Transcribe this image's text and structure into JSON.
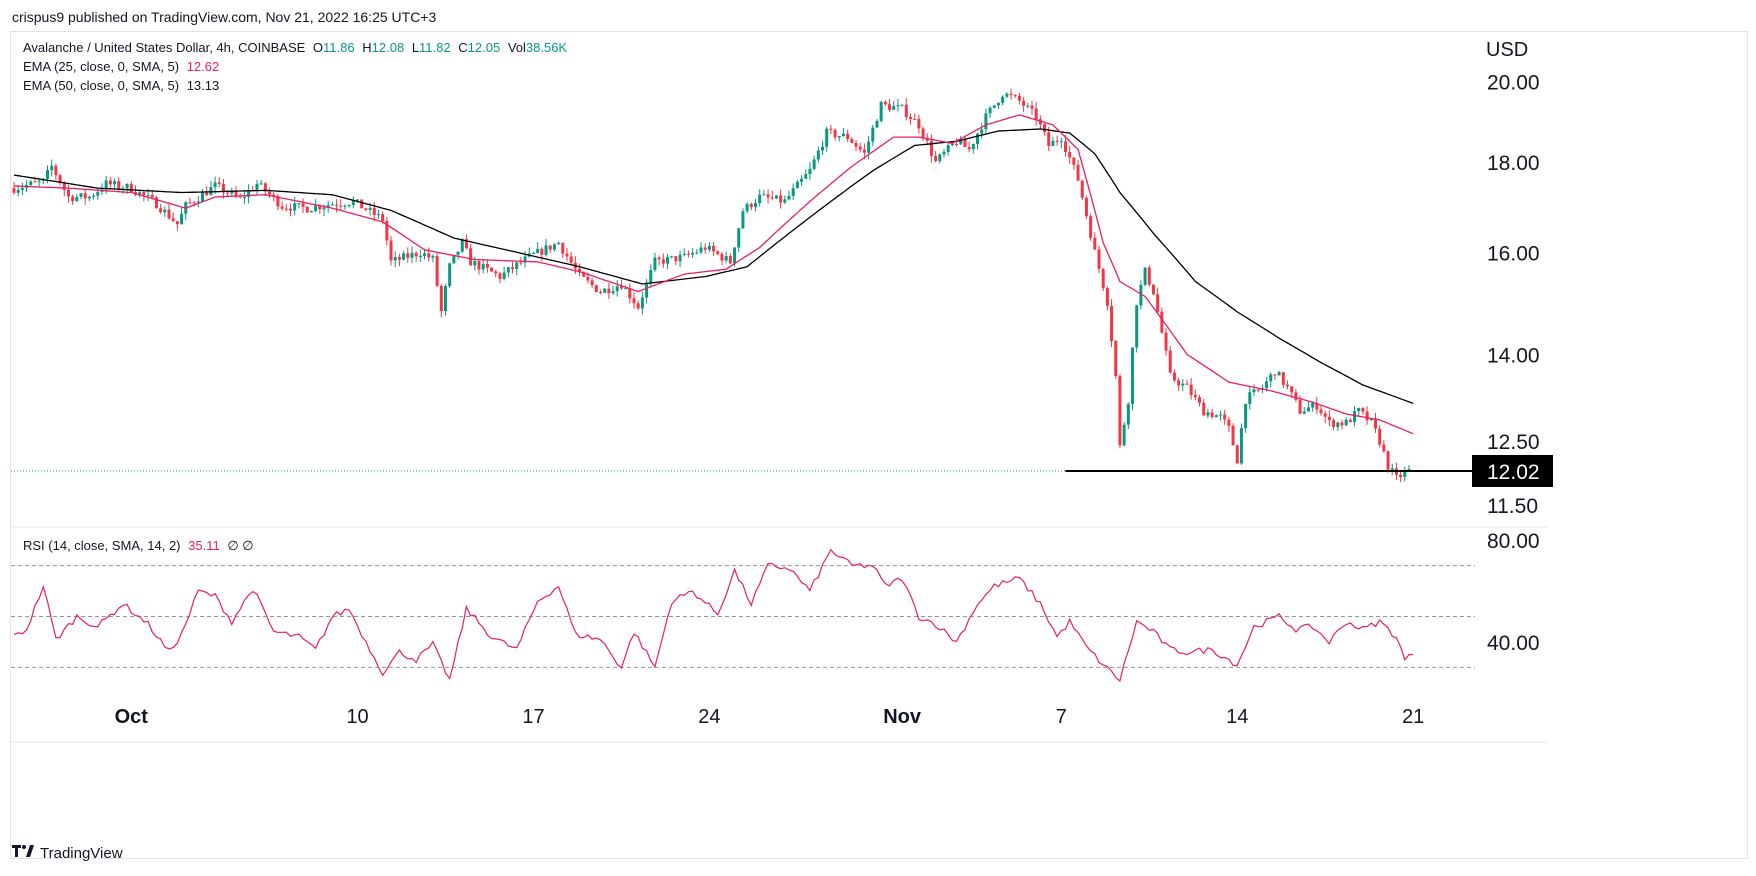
{
  "header": {
    "publisher_line": "crispus9 published on TradingView.com, Nov 21, 2022 16:25 UTC+3"
  },
  "legend": {
    "symbol": "Avalanche / United States Dollar, 4h, COINBASE",
    "o_label": "O",
    "o_value": "11.86",
    "h_label": "H",
    "h_value": "12.08",
    "l_label": "L",
    "l_value": "11.82",
    "c_label": "C",
    "c_value": "12.05",
    "vol_label": "Vol",
    "vol_value": "38.56K",
    "ema25_label": "EMA (25, close, 0, SMA, 5)",
    "ema25_value": "12.62",
    "ema50_label": "EMA (50, close, 0, SMA, 5)",
    "ema50_value": "13.13",
    "rsi_label": "RSI (14, close, SMA, 14, 2)",
    "rsi_value": "35.11",
    "rsi_extra": "∅  ∅"
  },
  "footer": {
    "brand": "TradingView",
    "logo_icon": "tradingview-logo-icon"
  },
  "colors": {
    "up": "#089981",
    "down": "#f23645",
    "ema25": "#e91e63",
    "ema50": "#000000",
    "rsi": "#e91e63",
    "support": "#000000",
    "price_label_bg": "#000000"
  },
  "chart_data": {
    "type": "candlestick",
    "symbol": "Avalanche / United States Dollar",
    "interval": "4h",
    "exchange": "COINBASE",
    "currency": "USD",
    "y_ticks": [
      "20.00",
      "18.00",
      "16.00",
      "14.00",
      "12.50",
      "11.50"
    ],
    "y_tick_values": [
      20,
      18,
      16,
      14,
      12.5,
      11.5
    ],
    "y_scale": "log",
    "ylim": [
      11.2,
      20.9
    ],
    "x_ticks": [
      {
        "label": "Oct",
        "bar": 28,
        "bold": true
      },
      {
        "label": "10",
        "bar": 82
      },
      {
        "label": "17",
        "bar": 124
      },
      {
        "label": "24",
        "bar": 166
      },
      {
        "label": "Nov",
        "bar": 212,
        "bold": true
      },
      {
        "label": "7",
        "bar": 250
      },
      {
        "label": "14",
        "bar": 292
      },
      {
        "label": "21",
        "bar": 334
      }
    ],
    "current_price": 12.02,
    "current_price_label": "12.02",
    "support_level": 12.02,
    "support_from_bar": 251,
    "anchors": [
      [
        0,
        17.4
      ],
      [
        7,
        17.55
      ],
      [
        9,
        17.9
      ],
      [
        13,
        17.2
      ],
      [
        18,
        17.2
      ],
      [
        22,
        17.5
      ],
      [
        28,
        17.4
      ],
      [
        34,
        17.05
      ],
      [
        39,
        16.6
      ],
      [
        41,
        17.0
      ],
      [
        48,
        17.45
      ],
      [
        54,
        17.15
      ],
      [
        58,
        17.5
      ],
      [
        64,
        17.0
      ],
      [
        70,
        16.95
      ],
      [
        76,
        17.05
      ],
      [
        81,
        17.1
      ],
      [
        88,
        16.7
      ],
      [
        90,
        15.8
      ],
      [
        97,
        16.0
      ],
      [
        100,
        15.85
      ],
      [
        102,
        14.8
      ],
      [
        104,
        15.7
      ],
      [
        107,
        16.2
      ],
      [
        109,
        15.8
      ],
      [
        116,
        15.5
      ],
      [
        123,
        15.9
      ],
      [
        130,
        16.2
      ],
      [
        135,
        15.5
      ],
      [
        140,
        15.2
      ],
      [
        145,
        15.35
      ],
      [
        149,
        14.9
      ],
      [
        153,
        15.8
      ],
      [
        160,
        15.9
      ],
      [
        165,
        16.1
      ],
      [
        171,
        15.8
      ],
      [
        174,
        16.9
      ],
      [
        178,
        17.2
      ],
      [
        184,
        17.1
      ],
      [
        190,
        17.8
      ],
      [
        194,
        18.7
      ],
      [
        199,
        18.6
      ],
      [
        203,
        18.2
      ],
      [
        207,
        19.4
      ],
      [
        212,
        19.3
      ],
      [
        216,
        18.9
      ],
      [
        220,
        18.0
      ],
      [
        225,
        18.5
      ],
      [
        228,
        18.3
      ],
      [
        232,
        19.1
      ],
      [
        236,
        19.7
      ],
      [
        240,
        19.5
      ],
      [
        244,
        19.1
      ],
      [
        247,
        18.4
      ],
      [
        250,
        18.6
      ],
      [
        254,
        17.6
      ],
      [
        256,
        16.8
      ],
      [
        258,
        16.0
      ],
      [
        261,
        15.0
      ],
      [
        263,
        13.6
      ],
      [
        264,
        12.4
      ],
      [
        266,
        13.2
      ],
      [
        268,
        15.0
      ],
      [
        270,
        15.6
      ],
      [
        272,
        15.2
      ],
      [
        274,
        14.4
      ],
      [
        276,
        13.6
      ],
      [
        280,
        13.4
      ],
      [
        284,
        13.0
      ],
      [
        288,
        12.9
      ],
      [
        290,
        12.7
      ],
      [
        292,
        12.2
      ],
      [
        294,
        13.2
      ],
      [
        298,
        13.4
      ],
      [
        301,
        13.7
      ],
      [
        304,
        13.4
      ],
      [
        307,
        13.0
      ],
      [
        311,
        13.1
      ],
      [
        314,
        12.8
      ],
      [
        318,
        12.8
      ],
      [
        321,
        13.0
      ],
      [
        324,
        12.8
      ],
      [
        326,
        12.5
      ],
      [
        328,
        12.1
      ],
      [
        330,
        11.9
      ],
      [
        333,
        12.05
      ]
    ],
    "ema25": [
      [
        0,
        17.45
      ],
      [
        13,
        17.4
      ],
      [
        28,
        17.3
      ],
      [
        41,
        16.95
      ],
      [
        48,
        17.2
      ],
      [
        60,
        17.25
      ],
      [
        76,
        16.95
      ],
      [
        88,
        16.65
      ],
      [
        98,
        16.05
      ],
      [
        110,
        15.85
      ],
      [
        125,
        15.8
      ],
      [
        135,
        15.6
      ],
      [
        149,
        15.2
      ],
      [
        160,
        15.55
      ],
      [
        170,
        15.65
      ],
      [
        178,
        16.1
      ],
      [
        190,
        17.1
      ],
      [
        200,
        17.9
      ],
      [
        210,
        18.6
      ],
      [
        216,
        18.6
      ],
      [
        224,
        18.45
      ],
      [
        232,
        18.9
      ],
      [
        240,
        19.15
      ],
      [
        248,
        18.9
      ],
      [
        254,
        18.3
      ],
      [
        260,
        16.2
      ],
      [
        264,
        15.4
      ],
      [
        270,
        15.1
      ],
      [
        280,
        14.0
      ],
      [
        290,
        13.5
      ],
      [
        300,
        13.35
      ],
      [
        310,
        13.15
      ],
      [
        318,
        12.95
      ],
      [
        326,
        12.85
      ],
      [
        334,
        12.62
      ]
    ],
    "ema50": [
      [
        0,
        17.7
      ],
      [
        20,
        17.4
      ],
      [
        40,
        17.3
      ],
      [
        60,
        17.35
      ],
      [
        76,
        17.25
      ],
      [
        90,
        16.9
      ],
      [
        105,
        16.3
      ],
      [
        120,
        16.0
      ],
      [
        135,
        15.7
      ],
      [
        150,
        15.35
      ],
      [
        165,
        15.5
      ],
      [
        175,
        15.7
      ],
      [
        185,
        16.4
      ],
      [
        195,
        17.1
      ],
      [
        205,
        17.8
      ],
      [
        215,
        18.4
      ],
      [
        225,
        18.5
      ],
      [
        235,
        18.75
      ],
      [
        245,
        18.8
      ],
      [
        252,
        18.7
      ],
      [
        258,
        18.2
      ],
      [
        264,
        17.3
      ],
      [
        272,
        16.4
      ],
      [
        282,
        15.4
      ],
      [
        292,
        14.8
      ],
      [
        302,
        14.3
      ],
      [
        312,
        13.85
      ],
      [
        322,
        13.45
      ],
      [
        334,
        13.13
      ]
    ],
    "rsi": {
      "label": "RSI (14, close, SMA, 14, 2)",
      "current": 35.11,
      "y_ticks": [
        "80.00",
        "40.00"
      ],
      "y_tick_values": [
        80,
        40
      ],
      "levels": [
        70,
        50,
        30
      ],
      "ylim": [
        16,
        84
      ],
      "anchors": [
        [
          0,
          42
        ],
        [
          3,
          45
        ],
        [
          7,
          62
        ],
        [
          10,
          41
        ],
        [
          15,
          50
        ],
        [
          20,
          46
        ],
        [
          26,
          55
        ],
        [
          32,
          47
        ],
        [
          37,
          36
        ],
        [
          40,
          43
        ],
        [
          44,
          60
        ],
        [
          48,
          58
        ],
        [
          52,
          48
        ],
        [
          57,
          61
        ],
        [
          62,
          44
        ],
        [
          68,
          42
        ],
        [
          72,
          37
        ],
        [
          76,
          50
        ],
        [
          80,
          53
        ],
        [
          84,
          40
        ],
        [
          88,
          28
        ],
        [
          92,
          36
        ],
        [
          96,
          33
        ],
        [
          100,
          39
        ],
        [
          104,
          25
        ],
        [
          108,
          53
        ],
        [
          114,
          42
        ],
        [
          120,
          37
        ],
        [
          125,
          56
        ],
        [
          130,
          62
        ],
        [
          134,
          43
        ],
        [
          140,
          41
        ],
        [
          145,
          30
        ],
        [
          148,
          44
        ],
        [
          153,
          30
        ],
        [
          157,
          56
        ],
        [
          162,
          60
        ],
        [
          168,
          51
        ],
        [
          172,
          68
        ],
        [
          176,
          55
        ],
        [
          180,
          70
        ],
        [
          185,
          69
        ],
        [
          190,
          60
        ],
        [
          195,
          76
        ],
        [
          200,
          70
        ],
        [
          205,
          70
        ],
        [
          208,
          62
        ],
        [
          212,
          65
        ],
        [
          216,
          50
        ],
        [
          220,
          47
        ],
        [
          225,
          40
        ],
        [
          230,
          55
        ],
        [
          234,
          62
        ],
        [
          240,
          65
        ],
        [
          245,
          55
        ],
        [
          249,
          42
        ],
        [
          252,
          48
        ],
        [
          256,
          38
        ],
        [
          260,
          31
        ],
        [
          264,
          25
        ],
        [
          268,
          48
        ],
        [
          272,
          44
        ],
        [
          276,
          37
        ],
        [
          280,
          36
        ],
        [
          286,
          37
        ],
        [
          292,
          31
        ],
        [
          296,
          46
        ],
        [
          302,
          50
        ],
        [
          306,
          45
        ],
        [
          310,
          46
        ],
        [
          314,
          40
        ],
        [
          318,
          48
        ],
        [
          322,
          45
        ],
        [
          326,
          48
        ],
        [
          330,
          42
        ],
        [
          332,
          33
        ],
        [
          334,
          35
        ]
      ]
    }
  }
}
